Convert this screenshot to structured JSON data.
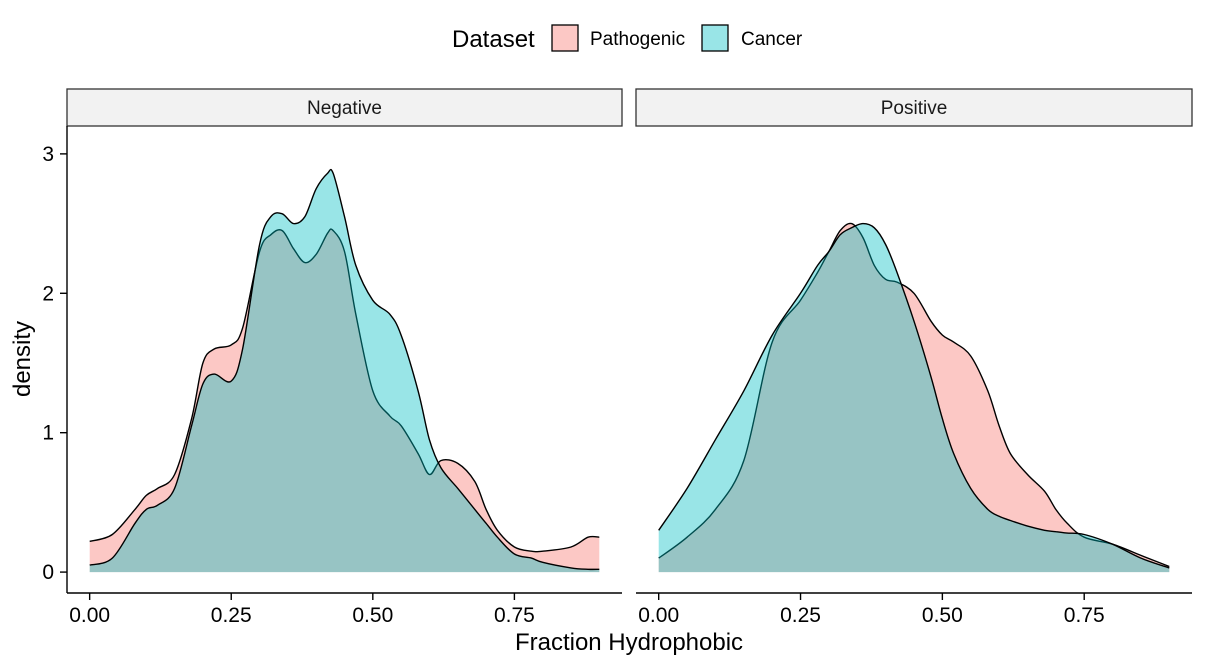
{
  "chart_data": {
    "type": "area",
    "chart_kind": "faceted density plot",
    "xlabel": "Fraction Hydrophobic",
    "ylabel": "density",
    "xlim": [
      -0.04,
      0.94
    ],
    "ylim": [
      -0.15,
      3.2
    ],
    "x_ticks": [
      {
        "value": 0.0,
        "label": "0.00"
      },
      {
        "value": 0.25,
        "label": "0.25"
      },
      {
        "value": 0.5,
        "label": "0.50"
      },
      {
        "value": 0.75,
        "label": "0.75"
      }
    ],
    "y_ticks": [
      {
        "value": 0,
        "label": "0"
      },
      {
        "value": 1,
        "label": "1"
      },
      {
        "value": 2,
        "label": "2"
      },
      {
        "value": 3,
        "label": "3"
      }
    ],
    "grid": false,
    "legend": {
      "title": "Dataset",
      "position": "top",
      "entries": [
        {
          "label": "Pathogenic",
          "color": "#F8766D"
        },
        {
          "label": "Cancer",
          "color": "#00BFC4"
        }
      ]
    },
    "fill_opacity": 0.4,
    "panels": [
      {
        "label": "Negative",
        "series": [
          {
            "name": "Pathogenic",
            "color": "#F8766D",
            "x": [
              0.0,
              0.04,
              0.08,
              0.1,
              0.12,
              0.15,
              0.18,
              0.2,
              0.22,
              0.25,
              0.27,
              0.3,
              0.32,
              0.34,
              0.36,
              0.38,
              0.4,
              0.42,
              0.43,
              0.45,
              0.47,
              0.5,
              0.53,
              0.55,
              0.58,
              0.6,
              0.62,
              0.65,
              0.68,
              0.7,
              0.72,
              0.75,
              0.78,
              0.8,
              0.85,
              0.88,
              0.9
            ],
            "y": [
              0.22,
              0.27,
              0.45,
              0.55,
              0.6,
              0.7,
              1.1,
              1.5,
              1.6,
              1.63,
              1.75,
              2.3,
              2.42,
              2.45,
              2.32,
              2.22,
              2.28,
              2.43,
              2.45,
              2.3,
              1.85,
              1.3,
              1.12,
              1.05,
              0.85,
              0.7,
              0.8,
              0.78,
              0.65,
              0.45,
              0.3,
              0.18,
              0.15,
              0.15,
              0.18,
              0.25,
              0.25
            ]
          },
          {
            "name": "Cancer",
            "color": "#00BFC4",
            "x": [
              0.0,
              0.04,
              0.08,
              0.1,
              0.12,
              0.15,
              0.18,
              0.2,
              0.22,
              0.25,
              0.27,
              0.3,
              0.32,
              0.34,
              0.36,
              0.38,
              0.4,
              0.42,
              0.43,
              0.45,
              0.47,
              0.5,
              0.53,
              0.55,
              0.58,
              0.6,
              0.62,
              0.65,
              0.68,
              0.7,
              0.72,
              0.75,
              0.78,
              0.8,
              0.85,
              0.88,
              0.9
            ],
            "y": [
              0.05,
              0.1,
              0.35,
              0.45,
              0.48,
              0.6,
              1.05,
              1.35,
              1.42,
              1.37,
              1.6,
              2.35,
              2.55,
              2.57,
              2.5,
              2.55,
              2.75,
              2.86,
              2.86,
              2.55,
              2.2,
              1.95,
              1.85,
              1.7,
              1.3,
              0.95,
              0.75,
              0.6,
              0.45,
              0.35,
              0.25,
              0.13,
              0.1,
              0.07,
              0.03,
              0.02,
              0.02
            ]
          }
        ]
      },
      {
        "label": "Positive",
        "series": [
          {
            "name": "Pathogenic",
            "color": "#F8766D",
            "x": [
              0.0,
              0.05,
              0.1,
              0.15,
              0.2,
              0.25,
              0.28,
              0.3,
              0.32,
              0.34,
              0.36,
              0.38,
              0.4,
              0.42,
              0.45,
              0.48,
              0.5,
              0.52,
              0.55,
              0.58,
              0.6,
              0.62,
              0.65,
              0.68,
              0.7,
              0.72,
              0.75,
              0.8,
              0.85,
              0.9
            ],
            "y": [
              0.1,
              0.25,
              0.45,
              0.8,
              1.65,
              1.95,
              2.15,
              2.3,
              2.45,
              2.5,
              2.4,
              2.2,
              2.1,
              2.08,
              2.0,
              1.8,
              1.7,
              1.65,
              1.55,
              1.3,
              1.05,
              0.85,
              0.7,
              0.58,
              0.45,
              0.35,
              0.25,
              0.2,
              0.12,
              0.04
            ]
          },
          {
            "name": "Cancer",
            "color": "#00BFC4",
            "x": [
              0.0,
              0.05,
              0.1,
              0.15,
              0.2,
              0.25,
              0.28,
              0.3,
              0.32,
              0.34,
              0.36,
              0.38,
              0.4,
              0.42,
              0.45,
              0.48,
              0.5,
              0.52,
              0.55,
              0.58,
              0.6,
              0.62,
              0.65,
              0.68,
              0.7,
              0.72,
              0.75,
              0.8,
              0.85,
              0.9
            ],
            "y": [
              0.3,
              0.6,
              0.95,
              1.3,
              1.7,
              2.0,
              2.2,
              2.3,
              2.42,
              2.47,
              2.5,
              2.47,
              2.35,
              2.15,
              1.8,
              1.4,
              1.1,
              0.85,
              0.6,
              0.45,
              0.4,
              0.37,
              0.33,
              0.3,
              0.29,
              0.28,
              0.27,
              0.2,
              0.1,
              0.03
            ]
          }
        ]
      }
    ]
  }
}
